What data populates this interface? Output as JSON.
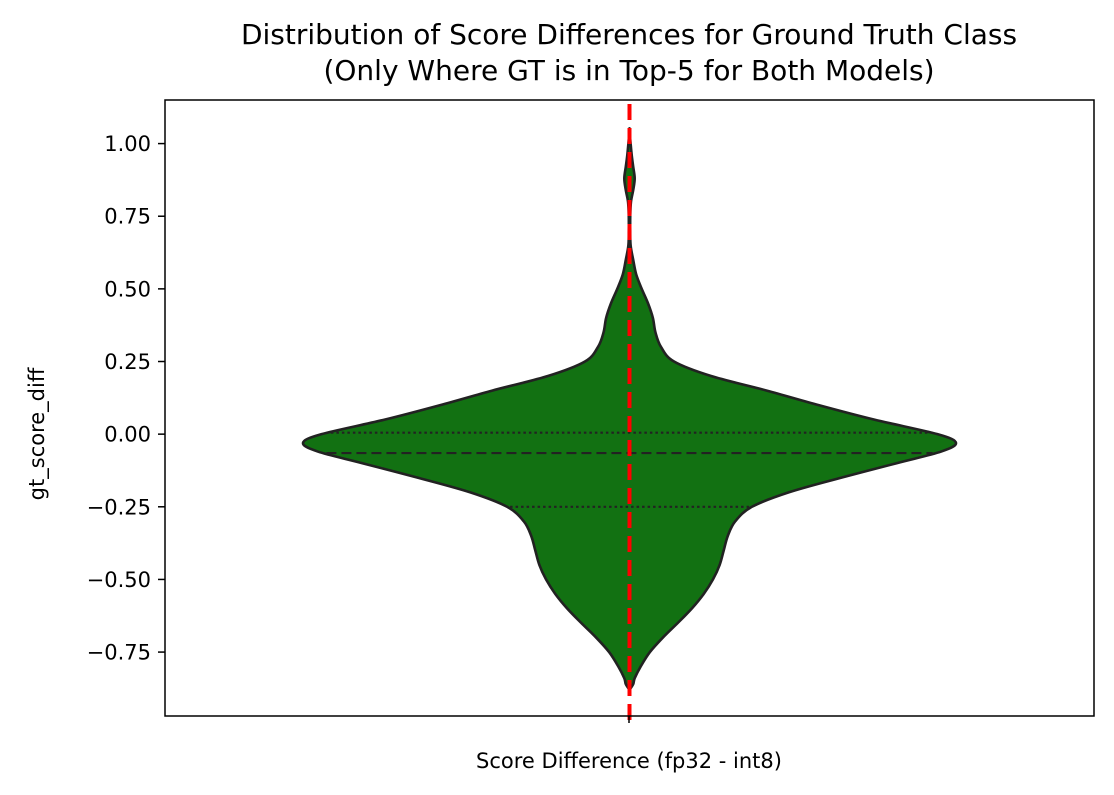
{
  "chart_data": {
    "type": "violin",
    "title_line1": "Distribution of Score Differences for Ground Truth Class",
    "title_line2": "(Only Where GT is in Top-5 for Both Models)",
    "xlabel": "Score Difference (fp32 - int8)",
    "ylabel": "gt_score_diff",
    "ylim": [
      -0.97,
      1.15
    ],
    "yticks": [
      -0.75,
      -0.5,
      -0.25,
      0.0,
      0.25,
      0.5,
      0.75,
      1.0
    ],
    "ytick_labels": [
      "−0.75",
      "−0.50",
      "−0.25",
      "0.00",
      "0.25",
      "0.50",
      "0.75",
      "1.00"
    ],
    "violin_color": "#127112",
    "outline_color": "#222222",
    "reference_line_color": "#ff0000",
    "reference_line_value": 0,
    "quartiles": {
      "q1": -0.25,
      "median": -0.065,
      "q3": 0.005
    },
    "density_profile": [
      {
        "y": -0.88,
        "half_width": 0.0
      },
      {
        "y": -0.86,
        "half_width": 0.01
      },
      {
        "y": -0.84,
        "half_width": 0.014
      },
      {
        "y": -0.8,
        "half_width": 0.03
      },
      {
        "y": -0.75,
        "half_width": 0.055
      },
      {
        "y": -0.7,
        "half_width": 0.09
      },
      {
        "y": -0.65,
        "half_width": 0.13
      },
      {
        "y": -0.6,
        "half_width": 0.168
      },
      {
        "y": -0.55,
        "half_width": 0.2
      },
      {
        "y": -0.5,
        "half_width": 0.225
      },
      {
        "y": -0.45,
        "half_width": 0.243
      },
      {
        "y": -0.4,
        "half_width": 0.254
      },
      {
        "y": -0.35,
        "half_width": 0.265
      },
      {
        "y": -0.3,
        "half_width": 0.285
      },
      {
        "y": -0.25,
        "half_width": 0.33
      },
      {
        "y": -0.2,
        "half_width": 0.43
      },
      {
        "y": -0.15,
        "half_width": 0.57
      },
      {
        "y": -0.1,
        "half_width": 0.72
      },
      {
        "y": -0.06,
        "half_width": 0.84
      },
      {
        "y": -0.03,
        "half_width": 0.88
      },
      {
        "y": 0.0,
        "half_width": 0.83
      },
      {
        "y": 0.05,
        "half_width": 0.66
      },
      {
        "y": 0.1,
        "half_width": 0.51
      },
      {
        "y": 0.15,
        "half_width": 0.37
      },
      {
        "y": 0.2,
        "half_width": 0.22
      },
      {
        "y": 0.25,
        "half_width": 0.12
      },
      {
        "y": 0.3,
        "half_width": 0.085
      },
      {
        "y": 0.35,
        "half_width": 0.07
      },
      {
        "y": 0.4,
        "half_width": 0.063
      },
      {
        "y": 0.45,
        "half_width": 0.05
      },
      {
        "y": 0.5,
        "half_width": 0.033
      },
      {
        "y": 0.55,
        "half_width": 0.018
      },
      {
        "y": 0.6,
        "half_width": 0.01
      },
      {
        "y": 0.65,
        "half_width": 0.003
      },
      {
        "y": 0.7,
        "half_width": 0.002
      },
      {
        "y": 0.75,
        "half_width": 0.002
      },
      {
        "y": 0.8,
        "half_width": 0.004
      },
      {
        "y": 0.84,
        "half_width": 0.01
      },
      {
        "y": 0.88,
        "half_width": 0.014
      },
      {
        "y": 0.92,
        "half_width": 0.01
      },
      {
        "y": 0.96,
        "half_width": 0.006
      },
      {
        "y": 1.0,
        "half_width": 0.003
      },
      {
        "y": 1.03,
        "half_width": 0.001
      },
      {
        "y": 1.05,
        "half_width": 0.0
      }
    ]
  }
}
